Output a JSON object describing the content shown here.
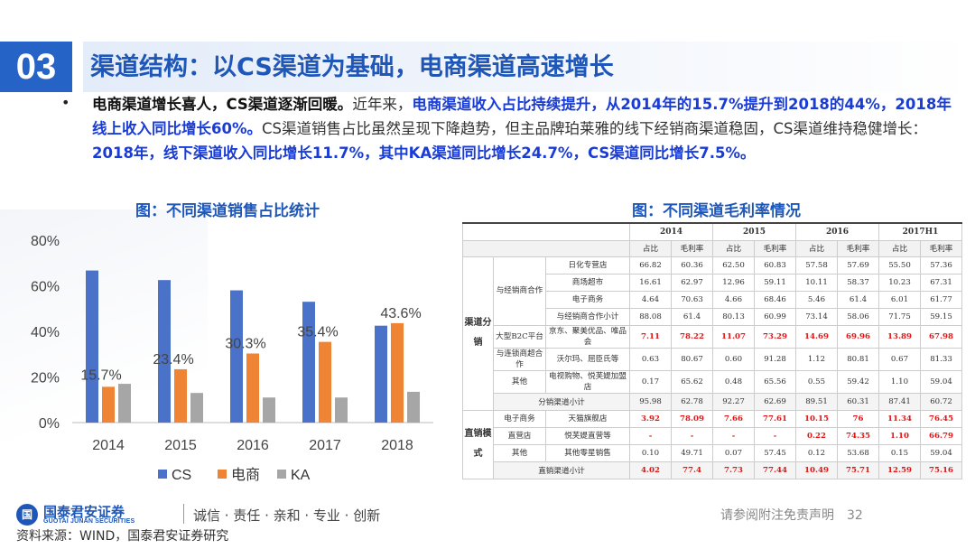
{
  "header": {
    "section_number": "03",
    "title": "渠道结构：以CS渠道为基础，电商渠道高速增长"
  },
  "bullet": "•",
  "paragraph": {
    "p1_bold": "电商渠道增长喜人，CS渠道逐渐回暖。",
    "p2": "近年来，",
    "p3_blue": "电商渠道收入占比持续提升，从2014年的15.7%提升到2018的44%，2018年线上收入同比增长60%。",
    "p4": "CS渠道销售占比虽然呈现下降趋势，但主品牌珀莱雅的线下经销商渠道稳固，CS渠道维持稳健增长：",
    "p5_blue": "2018年，线下渠道收入同比增长11.7%，其中KA渠道同比增长24.7%，CS渠道同比增长7.5%。"
  },
  "left_caption": "图：不同渠道销售占比统计",
  "right_caption": "图：不同渠道毛利率情况",
  "colors": {
    "CS": "#4a72c9",
    "电商": "#ee8434",
    "KA": "#a6a6a6",
    "title_blue": "#1f57b8"
  },
  "chart_data": {
    "type": "bar",
    "categories": [
      "2014",
      "2015",
      "2016",
      "2017",
      "2018"
    ],
    "series": [
      {
        "name": "CS",
        "values": [
          66.7,
          62.5,
          58.0,
          53.0,
          42.5
        ]
      },
      {
        "name": "电商",
        "values": [
          15.7,
          23.4,
          30.3,
          35.4,
          43.6
        ]
      },
      {
        "name": "KA",
        "values": [
          17.0,
          13.0,
          11.0,
          11.0,
          13.5
        ]
      }
    ],
    "data_labels": [
      "15.7%",
      "23.4%",
      "30.3%",
      "35.4%",
      "43.6%"
    ],
    "y_ticks": [
      "0%",
      "20%",
      "40%",
      "60%",
      "80%"
    ],
    "ylim": [
      0,
      80
    ],
    "grid": false,
    "legend_position": "bottom"
  },
  "table": {
    "years": [
      "2014",
      "2015",
      "2016",
      "2017H1"
    ],
    "sub_headers": [
      "占比",
      "毛利率",
      "占比",
      "毛利率",
      "占比",
      "毛利率",
      "占比",
      "毛利率"
    ],
    "group1_label": "渠道分销",
    "group2_label": "直销模式",
    "rows": [
      {
        "cat": "与经销商合作",
        "sub": "日化专营店",
        "vals": [
          "66.82",
          "60.36",
          "62.50",
          "60.83",
          "57.58",
          "57.69",
          "55.50",
          "57.36"
        ],
        "red": false
      },
      {
        "cat": "",
        "sub": "商场超市",
        "vals": [
          "16.61",
          "62.97",
          "12.96",
          "59.11",
          "10.11",
          "58.37",
          "10.23",
          "67.31"
        ],
        "red": false
      },
      {
        "cat": "",
        "sub": "电子商务",
        "vals": [
          "4.64",
          "70.63",
          "4.66",
          "68.46",
          "5.46",
          "61.4",
          "6.01",
          "61.77"
        ],
        "red": false
      },
      {
        "cat": "",
        "sub": "与经销商合作小计",
        "vals": [
          "88.08",
          "61.4",
          "80.13",
          "60.99",
          "73.14",
          "58.06",
          "71.75",
          "59.15"
        ],
        "red": false
      },
      {
        "cat": "大型B2C平台",
        "sub": "京东、聚美优品、唯品会",
        "vals": [
          "7.11",
          "78.22",
          "11.07",
          "73.29",
          "14.69",
          "69.96",
          "13.89",
          "67.98"
        ],
        "red": true
      },
      {
        "cat": "与连锁商超合作",
        "sub": "沃尔玛、屈臣氏等",
        "vals": [
          "0.63",
          "80.67",
          "0.60",
          "91.28",
          "1.12",
          "80.81",
          "0.67",
          "81.33"
        ],
        "red": false
      },
      {
        "cat": "其他",
        "sub": "电视购物、悦芙媞加盟店",
        "vals": [
          "0.17",
          "65.62",
          "0.48",
          "65.56",
          "0.55",
          "59.42",
          "1.10",
          "59.04"
        ],
        "red": false
      },
      {
        "cat": "",
        "sub": "分销渠道小计",
        "vals": [
          "95.98",
          "62.78",
          "92.27",
          "62.69",
          "89.51",
          "60.31",
          "87.41",
          "60.72"
        ],
        "red": false
      },
      {
        "cat": "电子商务",
        "sub": "天猫旗舰店",
        "vals": [
          "3.92",
          "78.09",
          "7.66",
          "77.61",
          "10.15",
          "76",
          "11.34",
          "76.45"
        ],
        "red": true
      },
      {
        "cat": "直营店",
        "sub": "悦芙媞直营等",
        "vals": [
          "-",
          "-",
          "-",
          "-",
          "0.22",
          "74.35",
          "1.10",
          "66.79"
        ],
        "red": true
      },
      {
        "cat": "其他",
        "sub": "其他零星销售",
        "vals": [
          "0.10",
          "49.71",
          "0.07",
          "57.45",
          "0.12",
          "53.68",
          "0.15",
          "59.04"
        ],
        "red": false
      },
      {
        "cat": "",
        "sub": "直销渠道小计",
        "vals": [
          "4.02",
          "77.4",
          "7.73",
          "77.44",
          "10.49",
          "75.71",
          "12.59",
          "75.16"
        ],
        "red": true
      }
    ]
  },
  "footer": {
    "logo_mark": "国",
    "logo_cn": "国泰君安证券",
    "logo_en": "GUOTAI JUNAN SECURITIES",
    "slogan": "诚信 · 责任 · 亲和 · 专业 · 创新",
    "source": "资料来源：WIND，国泰君安证券研究",
    "disclaimer": "请参阅附注免责声明　32"
  }
}
